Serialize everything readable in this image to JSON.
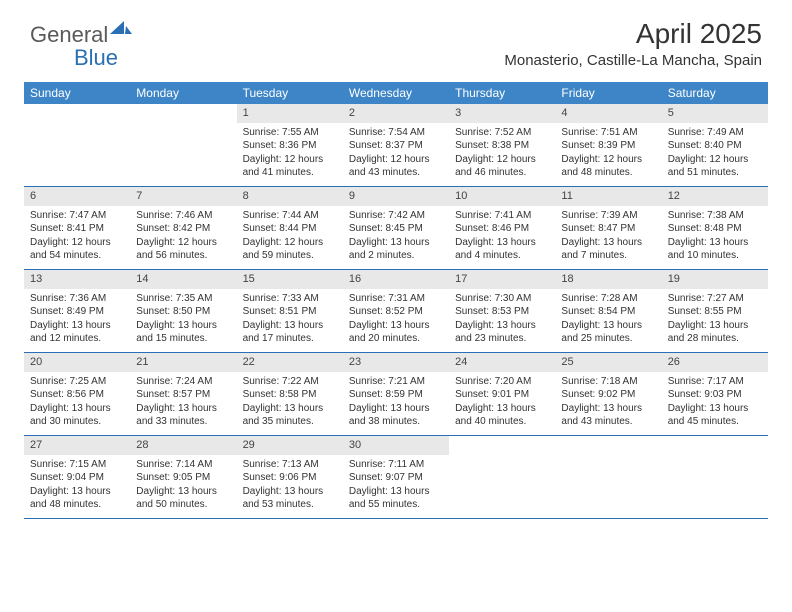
{
  "logo": {
    "word1": "General",
    "word2": "Blue"
  },
  "title": "April 2025",
  "location": "Monasterio, Castille-La Mancha, Spain",
  "colors": {
    "header_bg": "#3d85c6",
    "header_text": "#ffffff",
    "daynum_bg": "#e8e8e8",
    "week_border": "#2a6fb5",
    "logo_gray": "#5a5a5a",
    "logo_blue": "#2a6fb5"
  },
  "day_headers": [
    "Sunday",
    "Monday",
    "Tuesday",
    "Wednesday",
    "Thursday",
    "Friday",
    "Saturday"
  ],
  "weeks": [
    [
      {
        "empty": true
      },
      {
        "empty": true
      },
      {
        "num": "1",
        "sunrise": "Sunrise: 7:55 AM",
        "sunset": "Sunset: 8:36 PM",
        "daylight1": "Daylight: 12 hours",
        "daylight2": "and 41 minutes."
      },
      {
        "num": "2",
        "sunrise": "Sunrise: 7:54 AM",
        "sunset": "Sunset: 8:37 PM",
        "daylight1": "Daylight: 12 hours",
        "daylight2": "and 43 minutes."
      },
      {
        "num": "3",
        "sunrise": "Sunrise: 7:52 AM",
        "sunset": "Sunset: 8:38 PM",
        "daylight1": "Daylight: 12 hours",
        "daylight2": "and 46 minutes."
      },
      {
        "num": "4",
        "sunrise": "Sunrise: 7:51 AM",
        "sunset": "Sunset: 8:39 PM",
        "daylight1": "Daylight: 12 hours",
        "daylight2": "and 48 minutes."
      },
      {
        "num": "5",
        "sunrise": "Sunrise: 7:49 AM",
        "sunset": "Sunset: 8:40 PM",
        "daylight1": "Daylight: 12 hours",
        "daylight2": "and 51 minutes."
      }
    ],
    [
      {
        "num": "6",
        "sunrise": "Sunrise: 7:47 AM",
        "sunset": "Sunset: 8:41 PM",
        "daylight1": "Daylight: 12 hours",
        "daylight2": "and 54 minutes."
      },
      {
        "num": "7",
        "sunrise": "Sunrise: 7:46 AM",
        "sunset": "Sunset: 8:42 PM",
        "daylight1": "Daylight: 12 hours",
        "daylight2": "and 56 minutes."
      },
      {
        "num": "8",
        "sunrise": "Sunrise: 7:44 AM",
        "sunset": "Sunset: 8:44 PM",
        "daylight1": "Daylight: 12 hours",
        "daylight2": "and 59 minutes."
      },
      {
        "num": "9",
        "sunrise": "Sunrise: 7:42 AM",
        "sunset": "Sunset: 8:45 PM",
        "daylight1": "Daylight: 13 hours",
        "daylight2": "and 2 minutes."
      },
      {
        "num": "10",
        "sunrise": "Sunrise: 7:41 AM",
        "sunset": "Sunset: 8:46 PM",
        "daylight1": "Daylight: 13 hours",
        "daylight2": "and 4 minutes."
      },
      {
        "num": "11",
        "sunrise": "Sunrise: 7:39 AM",
        "sunset": "Sunset: 8:47 PM",
        "daylight1": "Daylight: 13 hours",
        "daylight2": "and 7 minutes."
      },
      {
        "num": "12",
        "sunrise": "Sunrise: 7:38 AM",
        "sunset": "Sunset: 8:48 PM",
        "daylight1": "Daylight: 13 hours",
        "daylight2": "and 10 minutes."
      }
    ],
    [
      {
        "num": "13",
        "sunrise": "Sunrise: 7:36 AM",
        "sunset": "Sunset: 8:49 PM",
        "daylight1": "Daylight: 13 hours",
        "daylight2": "and 12 minutes."
      },
      {
        "num": "14",
        "sunrise": "Sunrise: 7:35 AM",
        "sunset": "Sunset: 8:50 PM",
        "daylight1": "Daylight: 13 hours",
        "daylight2": "and 15 minutes."
      },
      {
        "num": "15",
        "sunrise": "Sunrise: 7:33 AM",
        "sunset": "Sunset: 8:51 PM",
        "daylight1": "Daylight: 13 hours",
        "daylight2": "and 17 minutes."
      },
      {
        "num": "16",
        "sunrise": "Sunrise: 7:31 AM",
        "sunset": "Sunset: 8:52 PM",
        "daylight1": "Daylight: 13 hours",
        "daylight2": "and 20 minutes."
      },
      {
        "num": "17",
        "sunrise": "Sunrise: 7:30 AM",
        "sunset": "Sunset: 8:53 PM",
        "daylight1": "Daylight: 13 hours",
        "daylight2": "and 23 minutes."
      },
      {
        "num": "18",
        "sunrise": "Sunrise: 7:28 AM",
        "sunset": "Sunset: 8:54 PM",
        "daylight1": "Daylight: 13 hours",
        "daylight2": "and 25 minutes."
      },
      {
        "num": "19",
        "sunrise": "Sunrise: 7:27 AM",
        "sunset": "Sunset: 8:55 PM",
        "daylight1": "Daylight: 13 hours",
        "daylight2": "and 28 minutes."
      }
    ],
    [
      {
        "num": "20",
        "sunrise": "Sunrise: 7:25 AM",
        "sunset": "Sunset: 8:56 PM",
        "daylight1": "Daylight: 13 hours",
        "daylight2": "and 30 minutes."
      },
      {
        "num": "21",
        "sunrise": "Sunrise: 7:24 AM",
        "sunset": "Sunset: 8:57 PM",
        "daylight1": "Daylight: 13 hours",
        "daylight2": "and 33 minutes."
      },
      {
        "num": "22",
        "sunrise": "Sunrise: 7:22 AM",
        "sunset": "Sunset: 8:58 PM",
        "daylight1": "Daylight: 13 hours",
        "daylight2": "and 35 minutes."
      },
      {
        "num": "23",
        "sunrise": "Sunrise: 7:21 AM",
        "sunset": "Sunset: 8:59 PM",
        "daylight1": "Daylight: 13 hours",
        "daylight2": "and 38 minutes."
      },
      {
        "num": "24",
        "sunrise": "Sunrise: 7:20 AM",
        "sunset": "Sunset: 9:01 PM",
        "daylight1": "Daylight: 13 hours",
        "daylight2": "and 40 minutes."
      },
      {
        "num": "25",
        "sunrise": "Sunrise: 7:18 AM",
        "sunset": "Sunset: 9:02 PM",
        "daylight1": "Daylight: 13 hours",
        "daylight2": "and 43 minutes."
      },
      {
        "num": "26",
        "sunrise": "Sunrise: 7:17 AM",
        "sunset": "Sunset: 9:03 PM",
        "daylight1": "Daylight: 13 hours",
        "daylight2": "and 45 minutes."
      }
    ],
    [
      {
        "num": "27",
        "sunrise": "Sunrise: 7:15 AM",
        "sunset": "Sunset: 9:04 PM",
        "daylight1": "Daylight: 13 hours",
        "daylight2": "and 48 minutes."
      },
      {
        "num": "28",
        "sunrise": "Sunrise: 7:14 AM",
        "sunset": "Sunset: 9:05 PM",
        "daylight1": "Daylight: 13 hours",
        "daylight2": "and 50 minutes."
      },
      {
        "num": "29",
        "sunrise": "Sunrise: 7:13 AM",
        "sunset": "Sunset: 9:06 PM",
        "daylight1": "Daylight: 13 hours",
        "daylight2": "and 53 minutes."
      },
      {
        "num": "30",
        "sunrise": "Sunrise: 7:11 AM",
        "sunset": "Sunset: 9:07 PM",
        "daylight1": "Daylight: 13 hours",
        "daylight2": "and 55 minutes."
      },
      {
        "empty": true
      },
      {
        "empty": true
      },
      {
        "empty": true
      }
    ]
  ]
}
